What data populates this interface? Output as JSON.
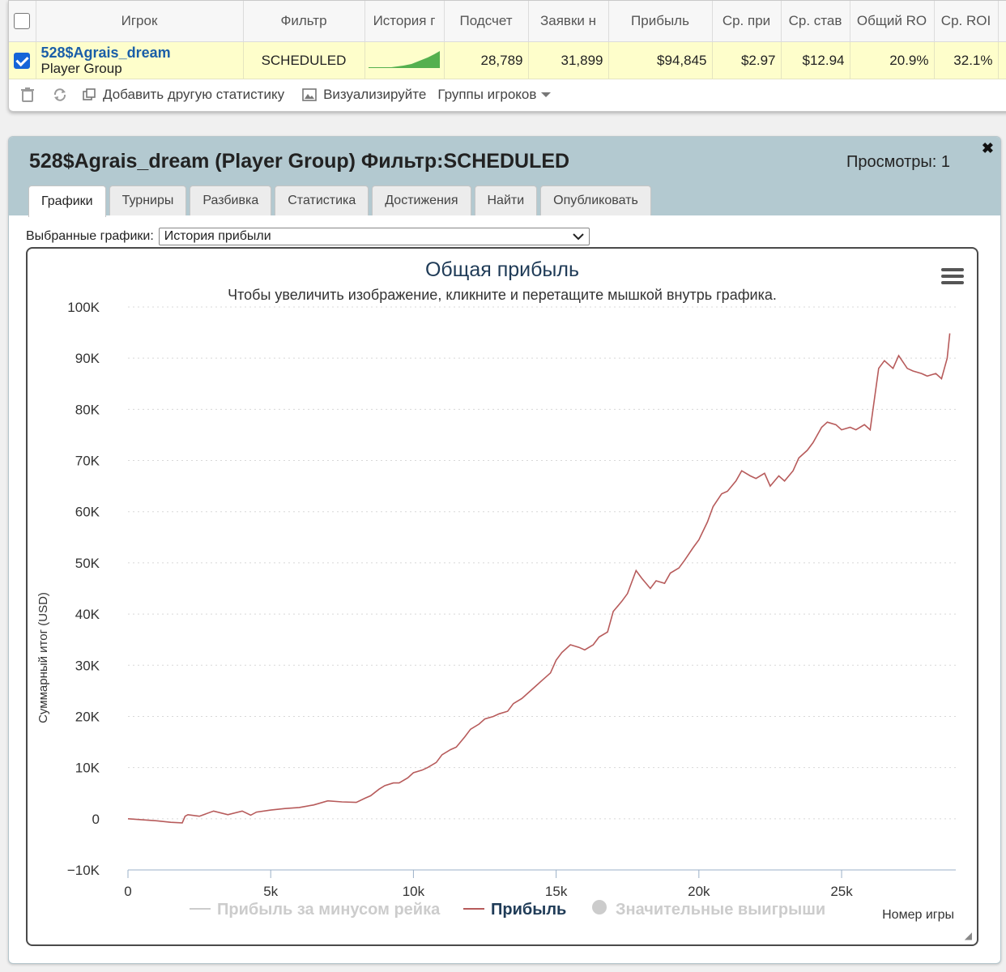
{
  "table": {
    "headers": [
      "Игрок",
      "Фильтр",
      "История г",
      "Подсчет",
      "Заявки н",
      "Прибыль",
      "Ср. при",
      "Ср. став",
      "Общий RO",
      "Ср. ROI"
    ],
    "row": {
      "player_name": "528$Agrais_dream",
      "player_type": "Player Group",
      "filter": "SCHEDULED",
      "count": "28,789",
      "entries": "31,899",
      "profit": "$94,845",
      "avg_profit": "$2.97",
      "avg_stake": "$12.94",
      "total_roi": "20.9%",
      "avg_roi": "32.1%"
    },
    "toolbar": {
      "add_stat": "Добавить другую статистику",
      "visualize": "Визуализируйте",
      "player_groups": "Группы игроков"
    }
  },
  "panel": {
    "title": "528$Agrais_dream (Player Group) Фильтр:SCHEDULED",
    "views": "Просмотры: 1",
    "tabs": [
      "Графики",
      "Турниры",
      "Разбивка",
      "Статистика",
      "Достижения",
      "Найти",
      "Опубликовать"
    ],
    "selected_label": "Выбранные графики:",
    "selected_value": "История прибыли"
  },
  "chart_data": {
    "type": "line",
    "title": "Общая прибыль",
    "subtitle": "Чтобы увеличить изображение, кликните и перетащите мышкой внутрь графика.",
    "xlabel": "Номер игры",
    "ylabel": "Суммарный итог (USD)",
    "xlim": [
      0,
      29000
    ],
    "ylim": [
      -10000,
      100000
    ],
    "xticks": [
      "0",
      "5k",
      "10k",
      "15k",
      "20k",
      "25k"
    ],
    "yticks": [
      "−10K",
      "0",
      "10K",
      "20K",
      "30K",
      "40K",
      "50K",
      "60K",
      "70K",
      "80K",
      "90K",
      "100K"
    ],
    "legend": [
      "Прибыль за минусом рейка",
      "Прибыль",
      "Значительные выигрыши"
    ],
    "legend_position": "bottom",
    "series_color": "#b75b5b",
    "series": [
      {
        "name": "Прибыль",
        "x": [
          0,
          500,
          1000,
          1500,
          1900,
          2000,
          2100,
          2500,
          3000,
          3500,
          4000,
          4300,
          4500,
          5000,
          5500,
          6000,
          6500,
          7000,
          7500,
          8000,
          8300,
          8500,
          8800,
          9000,
          9300,
          9500,
          9800,
          10000,
          10300,
          10500,
          10800,
          11000,
          11300,
          11500,
          11800,
          12000,
          12300,
          12500,
          12800,
          13000,
          13300,
          13500,
          13800,
          14000,
          14300,
          14500,
          14800,
          15000,
          15200,
          15500,
          15800,
          16000,
          16300,
          16500,
          16800,
          17000,
          17300,
          17500,
          17800,
          18000,
          18300,
          18500,
          18800,
          19000,
          19300,
          19500,
          19800,
          20000,
          20300,
          20500,
          20800,
          21000,
          21300,
          21500,
          21800,
          22000,
          22300,
          22500,
          22800,
          23000,
          23300,
          23500,
          23800,
          24000,
          24300,
          24500,
          24800,
          25000,
          25300,
          25500,
          25800,
          26000,
          26300,
          26500,
          26800,
          27000,
          27300,
          27500,
          27800,
          28000,
          28300,
          28500,
          28700,
          28789
        ],
        "y": [
          0,
          -200,
          -400,
          -700,
          -800,
          500,
          800,
          500,
          1500,
          800,
          1500,
          700,
          1300,
          1700,
          2000,
          2200,
          2700,
          3500,
          3300,
          3200,
          4000,
          4500,
          5800,
          6500,
          7000,
          7000,
          8000,
          9000,
          9500,
          10000,
          11000,
          12500,
          13500,
          14000,
          16000,
          17500,
          18500,
          19500,
          20000,
          20500,
          21000,
          22500,
          23500,
          24500,
          26000,
          27000,
          28500,
          31000,
          32500,
          34000,
          33500,
          33000,
          34000,
          35500,
          36500,
          40500,
          42500,
          44000,
          48500,
          47000,
          45000,
          46500,
          46000,
          48000,
          49000,
          50500,
          53000,
          54500,
          58000,
          61000,
          63500,
          64000,
          66000,
          68000,
          67000,
          66500,
          67500,
          65000,
          67000,
          66000,
          68000,
          70500,
          72000,
          73500,
          76500,
          77500,
          77000,
          76000,
          76500,
          76000,
          77000,
          76000,
          88000,
          89500,
          88000,
          90500,
          88000,
          87500,
          87000,
          86500,
          87000,
          86000,
          90000,
          94845
        ]
      }
    ]
  }
}
